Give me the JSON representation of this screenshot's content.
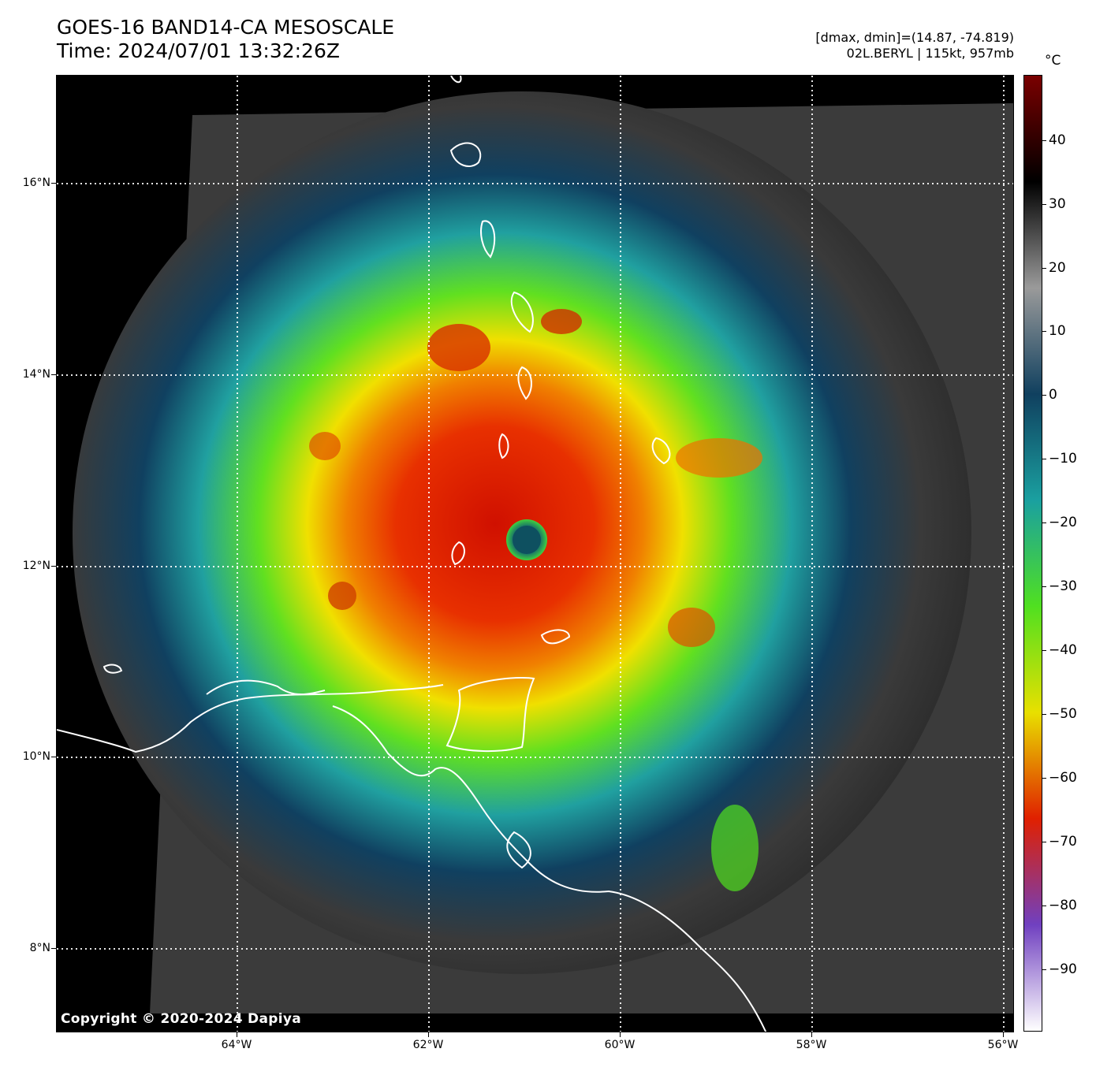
{
  "header": {
    "title_line1": "GOES-16 BAND14-CA MESOSCALE",
    "title_line2": "Time: 2024/07/01 13:32:26Z",
    "info_line1": "[dmax, dmin]=(14.87, -74.819)",
    "info_line2": "02L.BERYL | 115kt, 957mb"
  },
  "map": {
    "copyright": "Copyright © 2020-2024 Dapiya",
    "lat_labels": [
      "16°N",
      "14°N",
      "12°N",
      "10°N",
      "8°N"
    ],
    "lon_labels": [
      "64°W",
      "62°W",
      "60°W",
      "58°W",
      "56°W"
    ]
  },
  "colorbar": {
    "unit": "°C",
    "tick_labels": [
      "40",
      "30",
      "20",
      "10",
      "0",
      "−10",
      "−20",
      "−30",
      "−40",
      "−50",
      "−60",
      "−70",
      "−80",
      "−90"
    ],
    "colors": [
      "#7a0000",
      "#000000",
      "#9a9a9a",
      "#10405f",
      "#1aa0a0",
      "#50e020",
      "#e8e000",
      "#e02000",
      "#7040c0",
      "#ffffff"
    ]
  }
}
